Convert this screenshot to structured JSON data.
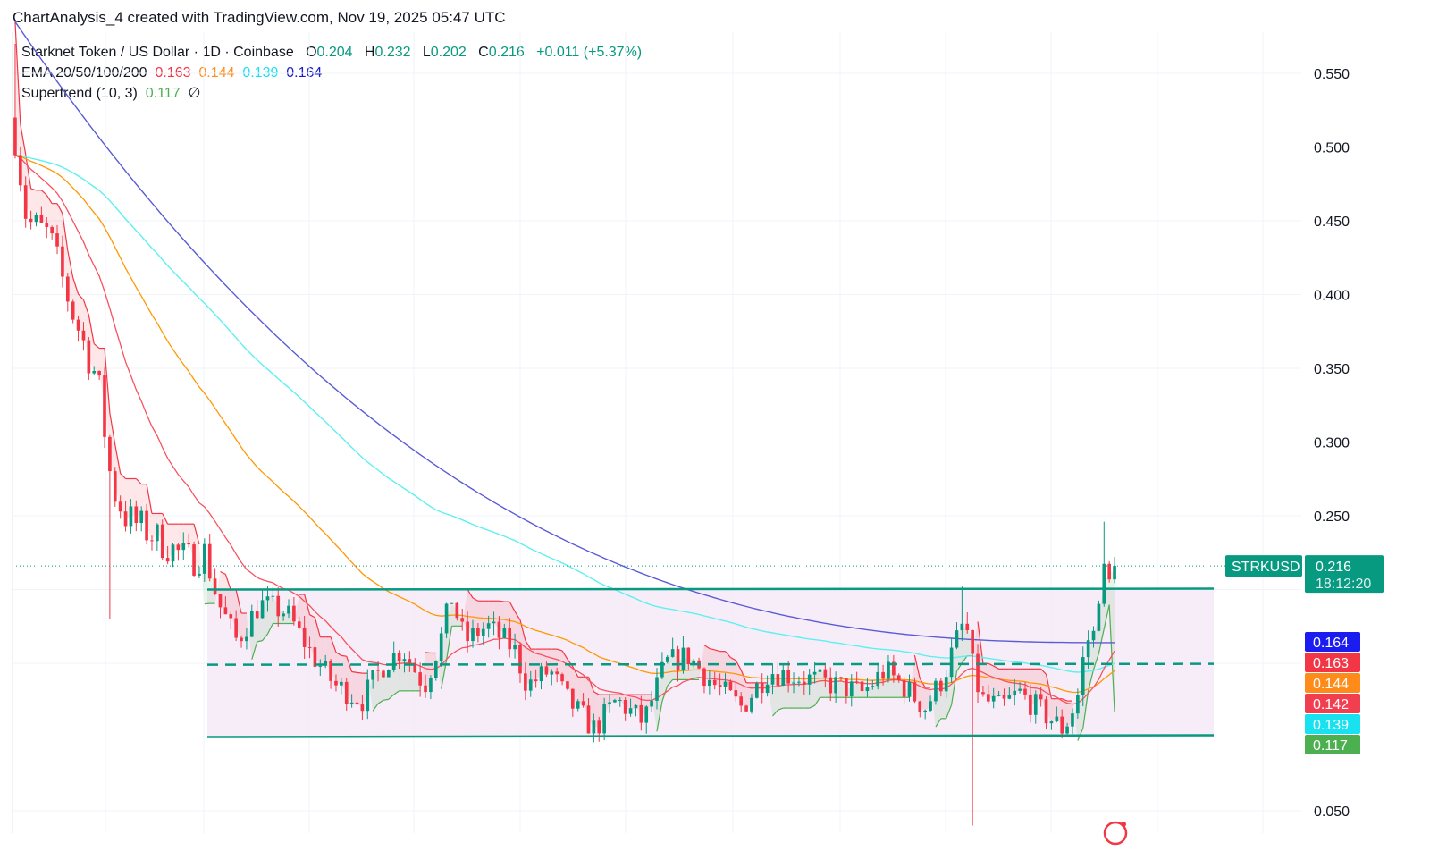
{
  "header": {
    "credit": "ChartAnalysis_4 created with TradingView.com, Nov 19, 2025 05:47 UTC"
  },
  "legend": {
    "symbol_line": "Starknet Token / US Dollar · 1D · Coinbase",
    "o_label": "O",
    "o_value": "0.204",
    "h_label": "H",
    "h_value": "0.232",
    "l_label": "L",
    "l_value": "0.202",
    "c_label": "C",
    "c_value": "0.216",
    "change": "+0.011 (+5.37%)",
    "ema_label": "EMA 20/50/100/200",
    "ema20": "0.163",
    "ema50": "0.144",
    "ema100": "0.139",
    "ema200": "0.164",
    "supertrend_label": "Supertrend (10, 3)",
    "supertrend_value": "0.117",
    "supertrend_icon": "∅"
  },
  "price_tag": {
    "symbol": "STRKUSD",
    "price": "0.216",
    "countdown": "18:12:20",
    "color": "#089981"
  },
  "right_tags": [
    {
      "text": "0.164",
      "color": "#1a1cf0"
    },
    {
      "text": "0.163",
      "color": "#f23645"
    },
    {
      "text": "0.144",
      "color": "#ff8c1a"
    },
    {
      "text": "0.142",
      "color": "#f23f4f"
    },
    {
      "text": "0.139",
      "color": "#18e1f0"
    },
    {
      "text": "0.117",
      "color": "#4caf50"
    }
  ],
  "colors": {
    "bull": "#089981",
    "bear": "#f23645",
    "ema20": "#f7525f",
    "ema50": "#ff9800",
    "ema100": "#5ef0f0",
    "ema200": "#5b5bd6",
    "range": "#089981",
    "range_fill": "#f3e5f5"
  },
  "chart_data": {
    "type": "candlestick",
    "symbol": "STRKUSD",
    "timeframe": "1D",
    "y_ticks": [
      "0.550",
      "0.500",
      "0.450",
      "0.400",
      "0.350",
      "0.300",
      "0.250",
      "0.050"
    ],
    "ylim": [
      0.035,
      0.585
    ],
    "last_close": 0.216,
    "range_resistance": 0.2,
    "range_midline": 0.149,
    "range_support": 0.1,
    "ema200_endpoints": [
      0.585,
      0.164
    ],
    "ema_last": {
      "ema20": 0.163,
      "ema50": 0.144,
      "ema100": 0.139,
      "ema200": 0.164
    },
    "supertrend_last": 0.117,
    "grid": true
  }
}
